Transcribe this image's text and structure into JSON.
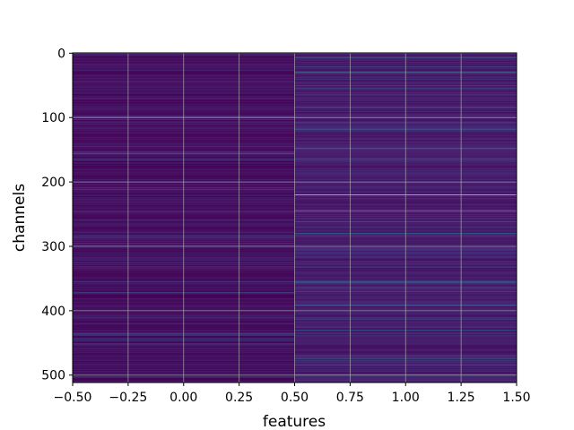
{
  "chart_data": {
    "type": "heatmap",
    "title": "",
    "xlabel": "features",
    "ylabel": "channels",
    "xlim": [
      -0.5,
      1.5
    ],
    "ylim": [
      511.5,
      -0.5
    ],
    "columns": 2,
    "rows": 512,
    "colormap": "viridis",
    "grid": true,
    "x_ticks": [
      {
        "value": -0.5,
        "label": "−0.50"
      },
      {
        "value": -0.25,
        "label": "−0.25"
      },
      {
        "value": 0.0,
        "label": "0.00"
      },
      {
        "value": 0.25,
        "label": "0.25"
      },
      {
        "value": 0.5,
        "label": "0.50"
      },
      {
        "value": 0.75,
        "label": "0.75"
      },
      {
        "value": 1.0,
        "label": "1.00"
      },
      {
        "value": 1.25,
        "label": "1.25"
      },
      {
        "value": 1.5,
        "label": "1.50"
      }
    ],
    "y_ticks": [
      {
        "value": 0,
        "label": "0"
      },
      {
        "value": 100,
        "label": "100"
      },
      {
        "value": 200,
        "label": "200"
      },
      {
        "value": 300,
        "label": "300"
      },
      {
        "value": 400,
        "label": "400"
      },
      {
        "value": 500,
        "label": "500"
      }
    ],
    "highlights": [
      {
        "column": 1,
        "row": 0,
        "value": 0.45
      },
      {
        "column": 1,
        "row": 30,
        "value": 0.5
      },
      {
        "column": 1,
        "row": 55,
        "value": 0.28
      },
      {
        "column": 1,
        "row": 84,
        "value": 0.38
      },
      {
        "column": 1,
        "row": 100,
        "value": 0.25
      },
      {
        "column": 1,
        "row": 148,
        "value": 0.45
      },
      {
        "column": 1,
        "row": 165,
        "value": 0.3
      },
      {
        "column": 1,
        "row": 200,
        "value": 0.25
      },
      {
        "column": 1,
        "row": 220,
        "value": 0.95
      },
      {
        "column": 1,
        "row": 245,
        "value": 0.55
      },
      {
        "column": 1,
        "row": 262,
        "value": 0.3
      },
      {
        "column": 1,
        "row": 280,
        "value": 0.38
      },
      {
        "column": 1,
        "row": 310,
        "value": 0.25
      },
      {
        "column": 1,
        "row": 355,
        "value": 0.3
      },
      {
        "column": 1,
        "row": 370,
        "value": 0.25
      },
      {
        "column": 1,
        "row": 392,
        "value": 0.35
      },
      {
        "column": 1,
        "row": 430,
        "value": 0.3
      },
      {
        "column": 1,
        "row": 474,
        "value": 0.5
      },
      {
        "column": 1,
        "row": 500,
        "value": 0.3
      },
      {
        "column": 0,
        "row": 0,
        "value": 0.3
      },
      {
        "column": 0,
        "row": 98,
        "value": 0.2
      },
      {
        "column": 0,
        "row": 156,
        "value": 0.3
      },
      {
        "column": 0,
        "row": 325,
        "value": 0.2
      },
      {
        "column": 0,
        "row": 372,
        "value": 0.28
      },
      {
        "column": 0,
        "row": 438,
        "value": 0.22
      },
      {
        "column": 0,
        "row": 503,
        "value": 0.28
      }
    ],
    "base_level": {
      "column_0": 0.04,
      "column_1": 0.08
    }
  }
}
